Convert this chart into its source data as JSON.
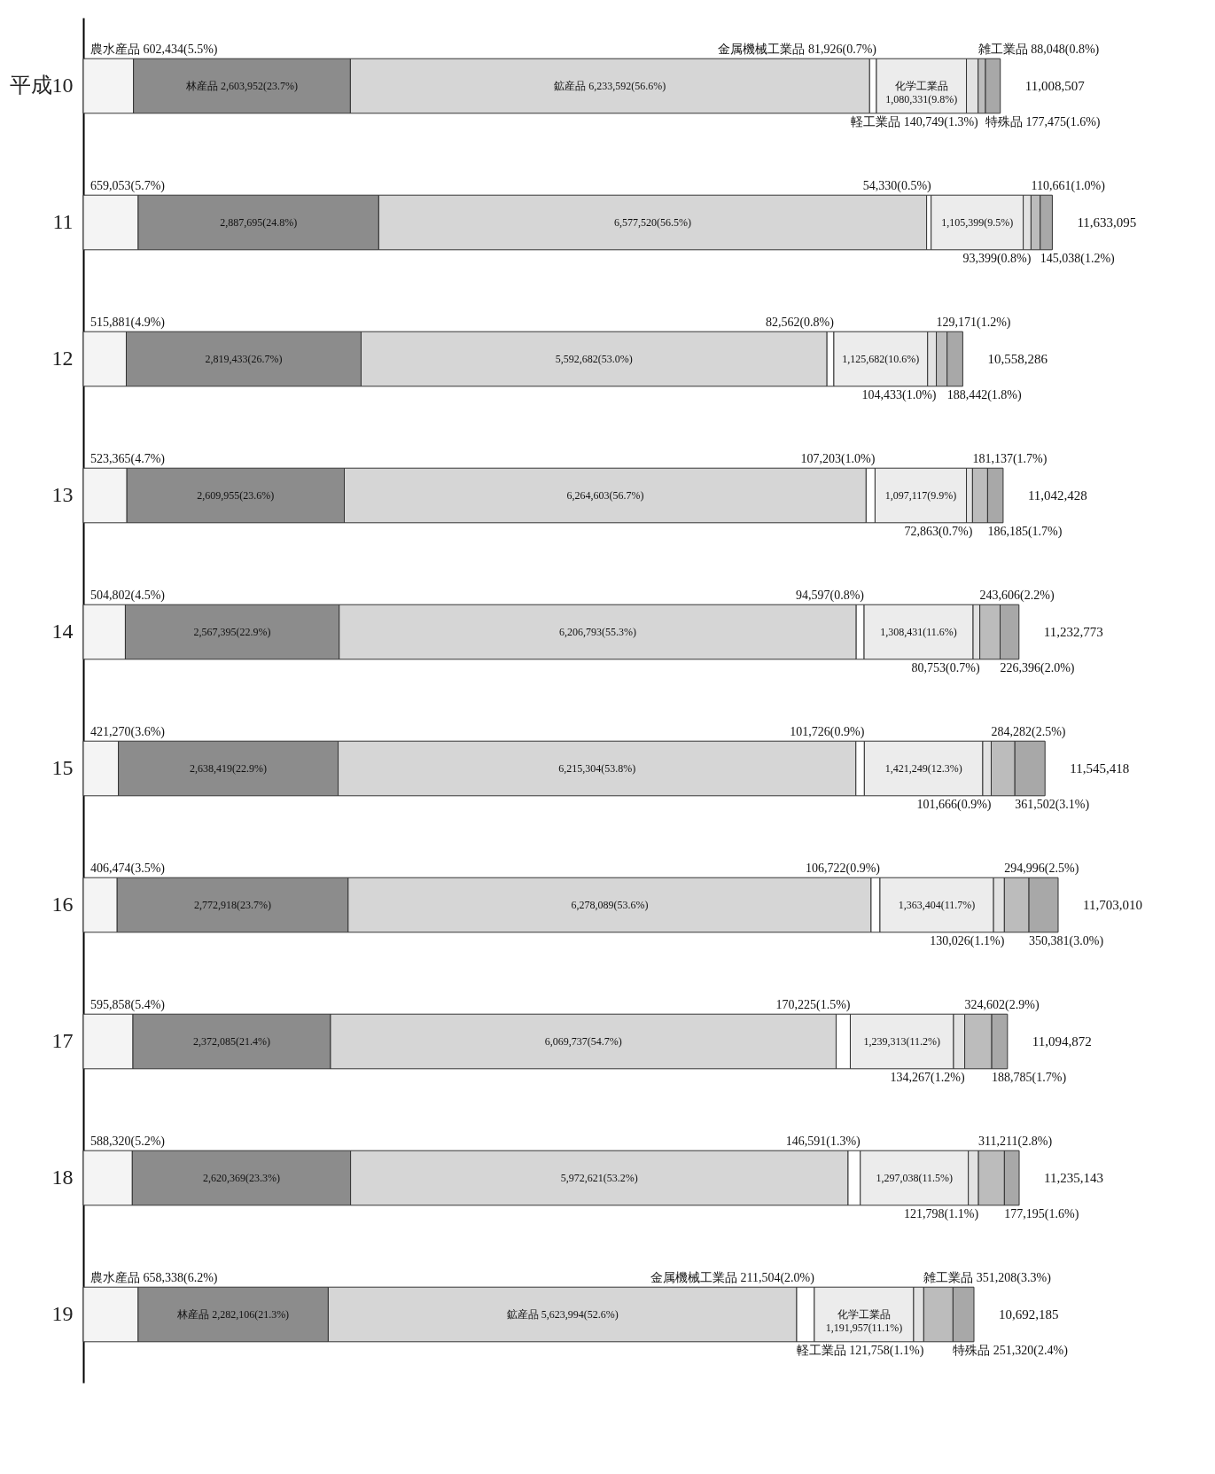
{
  "chart_data": {
    "type": "bar",
    "orientation": "horizontal",
    "stacked": true,
    "categories": [
      "平成10",
      "11",
      "12",
      "13",
      "14",
      "15",
      "16",
      "17",
      "18",
      "19"
    ],
    "series": [
      {
        "color": "#f4f4f4",
        "values": [
          602434,
          659053,
          515881,
          523365,
          504802,
          421270,
          406474,
          595858,
          588320,
          658338
        ],
        "value_labels": [
          "農水産品 602,434(5.5%)",
          "659,053(5.7%)",
          "515,881(4.9%)",
          "523,365(4.7%)",
          "504,802(4.5%)",
          "421,270(3.6%)",
          "406,474(3.5%)",
          "595,858(5.4%)",
          "588,320(5.2%)",
          "農水産品 658,338(6.2%)"
        ]
      },
      {
        "color": "#8c8c8c",
        "values": [
          2603952,
          2887695,
          2819433,
          2609955,
          2567395,
          2638419,
          2772918,
          2372085,
          2620369,
          2282106
        ],
        "value_labels": [
          "林産品 2,603,952(23.7%)",
          "2,887,695(24.8%)",
          "2,819,433(26.7%)",
          "2,609,955(23.6%)",
          "2,567,395(22.9%)",
          "2,638,419(22.9%)",
          "2,772,918(23.7%)",
          "2,372,085(21.4%)",
          "2,620,369(23.3%)",
          "林産品 2,282,106(21.3%)"
        ]
      },
      {
        "color": "#d6d6d6",
        "values": [
          6233592,
          6577520,
          5592682,
          6264603,
          6206793,
          6215304,
          6278089,
          6069737,
          5972621,
          5623994
        ],
        "value_labels": [
          "鉱産品 6,233,592(56.6%)",
          "6,577,520(56.5%)",
          "5,592,682(53.0%)",
          "6,264,603(56.7%)",
          "6,206,793(55.3%)",
          "6,215,304(53.8%)",
          "6,278,089(53.6%)",
          "6,069,737(54.7%)",
          "5,972,621(53.2%)",
          "鉱産品 5,623,994(52.6%)"
        ]
      },
      {
        "color": "#ffffff",
        "values": [
          81926,
          54330,
          82562,
          107203,
          94597,
          101726,
          106722,
          170225,
          146591,
          211504
        ],
        "value_labels": [
          "金属機械工業品 81,926(0.7%)",
          "54,330(0.5%)",
          "82,562(0.8%)",
          "107,203(1.0%)",
          "94,597(0.8%)",
          "101,726(0.9%)",
          "106,722(0.9%)",
          "170,225(1.5%)",
          "146,591(1.3%)",
          "金属機械工業品 211,504(2.0%)"
        ]
      },
      {
        "color": "#ececec",
        "values": [
          1080331,
          1105399,
          1125682,
          1097117,
          1308431,
          1421249,
          1363404,
          1239313,
          1297038,
          1191957
        ],
        "value_labels": [
          "化学工業品 1,080,331(9.8%)",
          "1,105,399(9.5%)",
          "1,125,682(10.6%)",
          "1,097,117(9.9%)",
          "1,308,431(11.6%)",
          "1,421,249(12.3%)",
          "1,363,404(11.7%)",
          "1,239,313(11.2%)",
          "1,297,038(11.5%)",
          "化学工業品 1,191,957(11.1%)"
        ]
      },
      {
        "color": "#e2e2e2",
        "values": [
          140749,
          93399,
          104433,
          72863,
          80753,
          101666,
          130026,
          134267,
          121798,
          121758
        ],
        "value_labels": [
          "軽工業品 140,749(1.3%)",
          "93,399(0.8%)",
          "104,433(1.0%)",
          "72,863(0.7%)",
          "80,753(0.7%)",
          "101,666(0.9%)",
          "130,026(1.1%)",
          "134,267(1.2%)",
          "121,798(1.1%)",
          "軽工業品 121,758(1.1%)"
        ]
      },
      {
        "color": "#bcbcbc",
        "values": [
          88048,
          110661,
          129171,
          181137,
          243606,
          284282,
          294996,
          324602,
          311211,
          351208
        ],
        "value_labels": [
          "雑工業品 88,048(0.8%)",
          "110,661(1.0%)",
          "129,171(1.2%)",
          "181,137(1.7%)",
          "243,606(2.2%)",
          "284,282(2.5%)",
          "294,996(2.5%)",
          "324,602(2.9%)",
          "311,211(2.8%)",
          "雑工業品 351,208(3.3%)"
        ]
      },
      {
        "color": "#a8a8a8",
        "values": [
          177475,
          145038,
          188442,
          186185,
          226396,
          361502,
          350381,
          188785,
          177195,
          251320
        ],
        "value_labels": [
          "特殊品 177,475(1.6%)",
          "145,038(1.2%)",
          "188,442(1.8%)",
          "186,185(1.7%)",
          "226,396(2.0%)",
          "361,502(3.1%)",
          "350,381(3.0%)",
          "188,785(1.7%)",
          "177,195(1.6%)",
          "特殊品 251,320(2.4%)"
        ]
      }
    ],
    "totals": [
      "11,008,507",
      "11,633,095",
      "10,558,286",
      "11,042,428",
      "11,232,773",
      "11,545,418",
      "11,703,010",
      "11,094,872",
      "11,235,143",
      "10,692,185"
    ]
  }
}
